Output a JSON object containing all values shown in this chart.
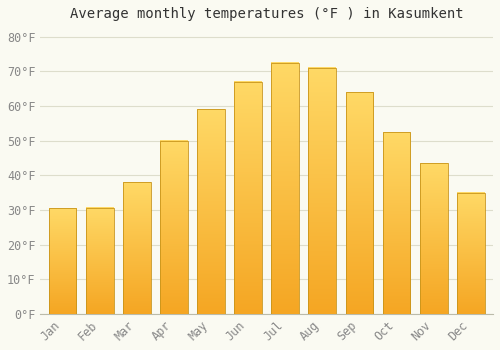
{
  "title": "Average monthly temperatures (°F ) in Kasumkent",
  "months": [
    "Jan",
    "Feb",
    "Mar",
    "Apr",
    "May",
    "Jun",
    "Jul",
    "Aug",
    "Sep",
    "Oct",
    "Nov",
    "Dec"
  ],
  "values": [
    30.5,
    30.7,
    38.0,
    50.0,
    59.0,
    67.0,
    72.5,
    71.0,
    64.0,
    52.5,
    43.5,
    35.0
  ],
  "bar_color_bottom": "#F5A623",
  "bar_color_top": "#FFD966",
  "bar_edge_color": "#C8941A",
  "background_color": "#FAFAF2",
  "grid_color": "#DDDDCC",
  "text_color": "#888888",
  "title_color": "#333333",
  "ylim": [
    0,
    83
  ],
  "yticks": [
    0,
    10,
    20,
    30,
    40,
    50,
    60,
    70,
    80
  ],
  "ytick_labels": [
    "0°F",
    "10°F",
    "20°F",
    "30°F",
    "40°F",
    "50°F",
    "60°F",
    "70°F",
    "80°F"
  ],
  "title_fontsize": 10,
  "tick_fontsize": 8.5,
  "bar_width": 0.75
}
